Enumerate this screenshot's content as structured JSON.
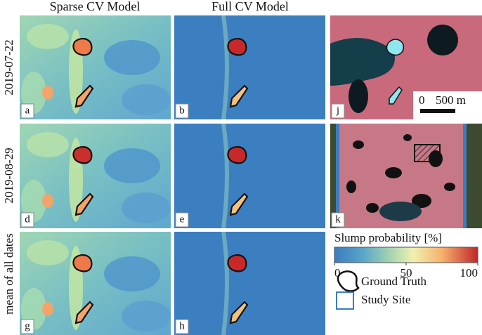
{
  "header": {
    "columns": [
      "Sparse CV Model",
      "Full CV Model"
    ]
  },
  "rows": [
    "2019-07-22",
    "2019-08-29",
    "mean of all dates"
  ],
  "panels": [
    "a",
    "b",
    "j",
    "d",
    "e",
    "k",
    "g",
    "h"
  ],
  "scale_bar": {
    "start": "0",
    "end": "500 m"
  },
  "legend": {
    "title": "Slump probability [%]",
    "colorbar": {
      "lim": [
        0,
        100
      ],
      "ticks": [
        0,
        50,
        100
      ]
    },
    "items": [
      "Ground Truth",
      "Study Site"
    ]
  }
}
